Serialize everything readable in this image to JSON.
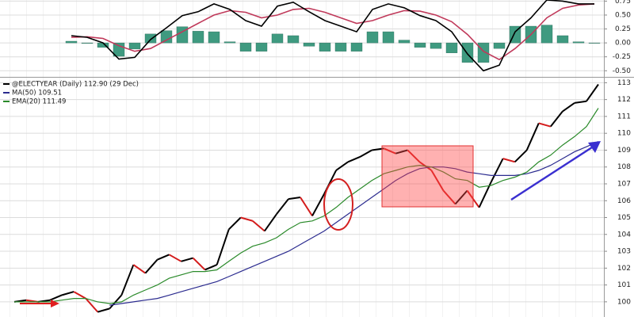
{
  "chart_data": [
    {
      "type": "line",
      "ylim": [
        -0.61,
        0.77
      ],
      "yticks": [
        0.75,
        {
          "value": 0.5,
          "label": "0.50"
        },
        0.25,
        {
          "value": 0,
          "label": "0.00"
        },
        -0.25,
        {
          "value": -0.5,
          "label": "-0.50"
        }
      ],
      "grid": true,
      "series": [
        {
          "type": "bar",
          "color": "#3f9a80",
          "values": [
            0.03,
            -0.01,
            -0.08,
            -0.24,
            -0.11,
            0.16,
            0.22,
            0.29,
            0.21,
            0.2,
            0.02,
            -0.15,
            -0.15,
            0.16,
            0.13,
            -0.06,
            -0.15,
            -0.15,
            -0.15,
            0.2,
            0.2,
            0.05,
            -0.08,
            -0.1,
            -0.18,
            -0.35,
            -0.35,
            -0.1,
            0.3,
            0.3,
            0.32,
            0.13,
            0.02,
            0
          ]
        },
        {
          "type": "line",
          "color": "#c0395a",
          "values": [
            0.1,
            0.11,
            0.08,
            -0.05,
            -0.15,
            -0.1,
            0.05,
            0.2,
            0.35,
            0.5,
            0.58,
            0.55,
            0.45,
            0.5,
            0.6,
            0.62,
            0.55,
            0.45,
            0.35,
            0.4,
            0.5,
            0.58,
            0.57,
            0.5,
            0.38,
            0.15,
            -0.15,
            -0.3,
            -0.1,
            0.15,
            0.45,
            0.62,
            0.68,
            0.7
          ]
        },
        {
          "type": "line",
          "color": "#000000",
          "values": [
            0.13,
            0.1,
            0,
            -0.29,
            -0.26,
            0.06,
            0.27,
            0.49,
            0.56,
            0.7,
            0.6,
            0.4,
            0.3,
            0.66,
            0.73,
            0.56,
            0.4,
            0.3,
            0.2,
            0.6,
            0.7,
            0.63,
            0.49,
            0.4,
            0.2,
            -0.2,
            -0.5,
            -0.4,
            0.2,
            0.45,
            0.77,
            0.75,
            0.7,
            0.7
          ]
        }
      ]
    },
    {
      "type": "line",
      "ylim": [
        99.1,
        113.3
      ],
      "yticks": [
        100,
        101,
        102,
        103,
        104,
        105,
        106,
        107,
        108,
        109,
        110,
        111,
        112,
        113
      ],
      "grid": true,
      "series": [
        {
          "name": "@ELECTYEAR (Daily) 112.90 (29 Dec)",
          "color": "#000000",
          "down_color": "#d41c1c",
          "values": [
            100.0,
            100.1,
            100.0,
            100.1,
            100.4,
            100.6,
            100.2,
            99.4,
            99.6,
            100.4,
            102.2,
            101.7,
            102.5,
            102.8,
            102.4,
            102.6,
            101.9,
            102.2,
            104.3,
            105.0,
            104.8,
            104.2,
            105.2,
            106.1,
            106.2,
            105.1,
            106.4,
            107.8,
            108.3,
            108.6,
            109.0,
            109.1,
            108.8,
            109.0,
            108.3,
            107.8,
            106.6,
            105.8,
            106.6,
            105.6,
            107.1,
            108.5,
            108.3,
            109.0,
            110.6,
            110.4,
            111.3,
            111.8,
            111.9,
            112.9
          ]
        },
        {
          "name": "MA(50) 109.51",
          "color": "#2b2b8f",
          "values": [
            null,
            null,
            null,
            null,
            null,
            null,
            null,
            null,
            99.8,
            99.9,
            100.0,
            100.1,
            100.2,
            100.4,
            100.6,
            100.8,
            101.0,
            101.2,
            101.5,
            101.8,
            102.1,
            102.4,
            102.7,
            103.0,
            103.4,
            103.8,
            104.2,
            104.7,
            105.2,
            105.7,
            106.2,
            106.7,
            107.2,
            107.6,
            107.9,
            108.0,
            108.0,
            107.9,
            107.7,
            107.6,
            107.5,
            107.5,
            107.5,
            107.6,
            107.8,
            108.1,
            108.5,
            108.9,
            109.2,
            109.51
          ]
        },
        {
          "name": "EMA(20) 111.49",
          "color": "#2a8a2a",
          "values": [
            100.0,
            100.0,
            100.0,
            100.0,
            100.1,
            100.2,
            100.2,
            100.0,
            99.9,
            100.0,
            100.4,
            100.7,
            101.0,
            101.4,
            101.6,
            101.8,
            101.8,
            101.9,
            102.4,
            102.9,
            103.3,
            103.5,
            103.8,
            104.3,
            104.7,
            104.8,
            105.1,
            105.6,
            106.2,
            106.7,
            107.2,
            107.6,
            107.8,
            108.0,
            108.1,
            108.0,
            107.7,
            107.3,
            107.2,
            106.8,
            106.9,
            107.2,
            107.4,
            107.7,
            108.3,
            108.7,
            109.3,
            109.8,
            110.4,
            111.49
          ]
        }
      ]
    }
  ]
}
